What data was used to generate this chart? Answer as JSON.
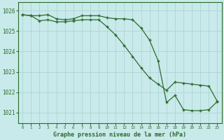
{
  "x": [
    0,
    1,
    2,
    3,
    4,
    5,
    6,
    7,
    8,
    9,
    10,
    11,
    12,
    13,
    14,
    15,
    16,
    17,
    18,
    19,
    20,
    21,
    22,
    23
  ],
  "line1": [
    1025.8,
    1025.75,
    1025.75,
    1025.8,
    1025.6,
    1025.55,
    1025.6,
    1025.75,
    1025.75,
    1025.75,
    1025.65,
    1025.6,
    1025.6,
    1025.55,
    1025.15,
    1024.55,
    1023.55,
    1021.5,
    1021.85,
    1021.15,
    1021.1,
    1021.1,
    1021.15,
    1021.55
  ],
  "line2": [
    1025.8,
    1025.75,
    1025.5,
    1025.55,
    1025.45,
    1025.45,
    1025.5,
    1025.55,
    1025.55,
    1025.55,
    1025.2,
    1024.8,
    1024.3,
    1023.75,
    1023.2,
    1022.7,
    1022.4,
    1022.1,
    1022.5,
    1022.45,
    1022.4,
    1022.35,
    1022.3,
    1021.55
  ],
  "line_color": "#2d6a2d",
  "bg_color": "#c8eaea",
  "grid_color": "#aed4d4",
  "ylabel_ticks": [
    1021,
    1022,
    1023,
    1024,
    1025,
    1026
  ],
  "xlabel": "Graphe pression niveau de la mer (hPa)",
  "ylim": [
    1020.5,
    1026.4
  ],
  "xlim": [
    -0.5,
    23.5
  ]
}
